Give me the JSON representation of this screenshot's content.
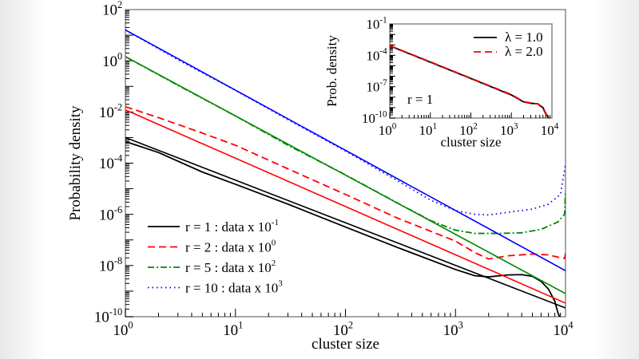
{
  "chart_data": [
    {
      "type": "line",
      "xlabel": "cluster size",
      "ylabel": "Probability density",
      "xscale": "log",
      "yscale": "log",
      "xlim": [
        1,
        10000
      ],
      "ylim": [
        1e-10,
        100
      ],
      "xtick_labels": [
        "10^0",
        "10^1",
        "10^2",
        "10^3",
        "10^4"
      ],
      "ytick_labels": [
        "10^-10",
        "10^-8",
        "10^-6",
        "10^-4",
        "10^-2",
        "10^0",
        "10^2"
      ],
      "legend_position": "bottom-left",
      "series": [
        {
          "name": "r = 1   : data x 10^-1",
          "label_main": "r = 1   : data x 10",
          "label_exp": "-1",
          "color": "#000000",
          "style": "solid",
          "points": [
            [
              1,
              0.0007
            ],
            [
              2,
              0.00026
            ],
            [
              5,
              4.5e-05
            ],
            [
              10,
              1.5e-05
            ],
            [
              30,
              2.5e-06
            ],
            [
              100,
              3.2e-07
            ],
            [
              300,
              5e-08
            ],
            [
              1000,
              7e-09
            ],
            [
              1500,
              4e-09
            ],
            [
              2000,
              3.6e-09
            ],
            [
              3000,
              4.3e-09
            ],
            [
              4000,
              4.4e-09
            ],
            [
              5000,
              3.8e-09
            ],
            [
              6000,
              2.4e-09
            ],
            [
              7000,
              1.2e-09
            ],
            [
              8000,
              4e-10
            ],
            [
              8500,
              1.5e-10
            ],
            [
              9000,
              8e-11
            ]
          ],
          "fit": [
            [
              1,
              0.001
            ],
            [
              10000,
              2.2e-10
            ]
          ]
        },
        {
          "name": "r = 2   : data x 10^0",
          "label_main": "r = 2   : data x 10",
          "label_exp": "0",
          "color": "#ff0000",
          "style": "dashed",
          "points": [
            [
              1,
              0.016
            ],
            [
              2,
              0.006
            ],
            [
              5,
              0.0015
            ],
            [
              10,
              0.0005
            ],
            [
              30,
              6e-05
            ],
            [
              100,
              6e-06
            ],
            [
              300,
              7e-07
            ],
            [
              1000,
              9e-08
            ],
            [
              1500,
              3.2e-08
            ],
            [
              2000,
              1.8e-08
            ],
            [
              3000,
              2.4e-08
            ],
            [
              5000,
              2.8e-08
            ],
            [
              7000,
              2.6e-08
            ],
            [
              9000,
              2e-08
            ],
            [
              9800,
              1.9e-08
            ],
            [
              10000,
              3e-08
            ]
          ],
          "fit": [
            [
              1,
              0.012
            ],
            [
              10000,
              3.4e-10
            ]
          ]
        },
        {
          "name": "r = 5   : data x 10^2",
          "label_main": "r = 5   : data x 10",
          "label_exp": "2",
          "color": "#008800",
          "style": "dashdot",
          "points": [
            [
              1,
              1.45
            ],
            [
              3,
              0.11
            ],
            [
              10,
              0.007
            ],
            [
              30,
              0.0005
            ],
            [
              100,
              3.5e-05
            ],
            [
              300,
              2.7e-06
            ],
            [
              600,
              5.6e-07
            ],
            [
              1000,
              2.4e-07
            ],
            [
              1500,
              1.8e-07
            ],
            [
              2500,
              1.8e-07
            ],
            [
              4000,
              1.9e-07
            ],
            [
              6000,
              2.6e-07
            ],
            [
              8500,
              5e-07
            ],
            [
              9800,
              1e-06
            ],
            [
              10000,
              8e-06
            ]
          ],
          "fit": [
            [
              1,
              1.45
            ],
            [
              10000,
              8e-10
            ]
          ]
        },
        {
          "name": "r = 10 : data x 10^3",
          "label_main": "r = 10 : data x 10",
          "label_exp": "3",
          "color": "#0000ff",
          "style": "dotted",
          "points": [
            [
              1,
              16
            ],
            [
              3,
              1.1
            ],
            [
              10,
              0.07
            ],
            [
              30,
              0.005
            ],
            [
              100,
              0.0003
            ],
            [
              300,
              2e-05
            ],
            [
              600,
              3.5e-06
            ],
            [
              1000,
              1.4e-06
            ],
            [
              1500,
              1e-06
            ],
            [
              2000,
              9.5e-07
            ],
            [
              3000,
              1.2e-06
            ],
            [
              5000,
              1.6e-06
            ],
            [
              7000,
              2.5e-06
            ],
            [
              9000,
              6e-06
            ],
            [
              10000,
              9e-05
            ]
          ],
          "fit": [
            [
              1,
              16
            ],
            [
              10000,
              6.3e-09
            ]
          ]
        }
      ]
    },
    {
      "type": "line",
      "inset": true,
      "xlabel": "cluster size",
      "ylabel": "Prob. density",
      "xscale": "log",
      "yscale": "log",
      "xlim": [
        1,
        10000
      ],
      "ylim": [
        1e-10,
        0.1
      ],
      "xtick_labels": [
        "10^0",
        "10^1",
        "10^2",
        "10^3",
        "10^4"
      ],
      "ytick_labels": [
        "10^-10",
        "10^-7",
        "10^-4",
        "10^-1"
      ],
      "annotation": "r = 1",
      "legend_position": "top-right",
      "series": [
        {
          "name": "λ = 1.0",
          "color": "#000000",
          "style": "solid",
          "points": [
            [
              1,
              0.0008
            ],
            [
              10,
              2.2e-05
            ],
            [
              100,
              6e-07
            ],
            [
              1000,
              1.6e-08
            ],
            [
              2000,
              3.5e-09
            ],
            [
              3000,
              2.6e-09
            ],
            [
              4500,
              2.3e-09
            ],
            [
              6000,
              1e-09
            ],
            [
              7000,
              3e-10
            ],
            [
              8000,
              1.2e-10
            ],
            [
              9000,
              8e-11
            ]
          ]
        },
        {
          "name": "λ = 2.0",
          "color": "#ff0000",
          "style": "dashed",
          "points": [
            [
              1,
              0.00085
            ],
            [
              10,
              2.4e-05
            ],
            [
              100,
              6.5e-07
            ],
            [
              1000,
              1.8e-08
            ],
            [
              2000,
              3.8e-09
            ],
            [
              3000,
              2.8e-09
            ],
            [
              4500,
              2.2e-09
            ],
            [
              6000,
              8e-10
            ],
            [
              7000,
              2.5e-10
            ],
            [
              8000,
              1e-10
            ]
          ]
        }
      ]
    }
  ]
}
